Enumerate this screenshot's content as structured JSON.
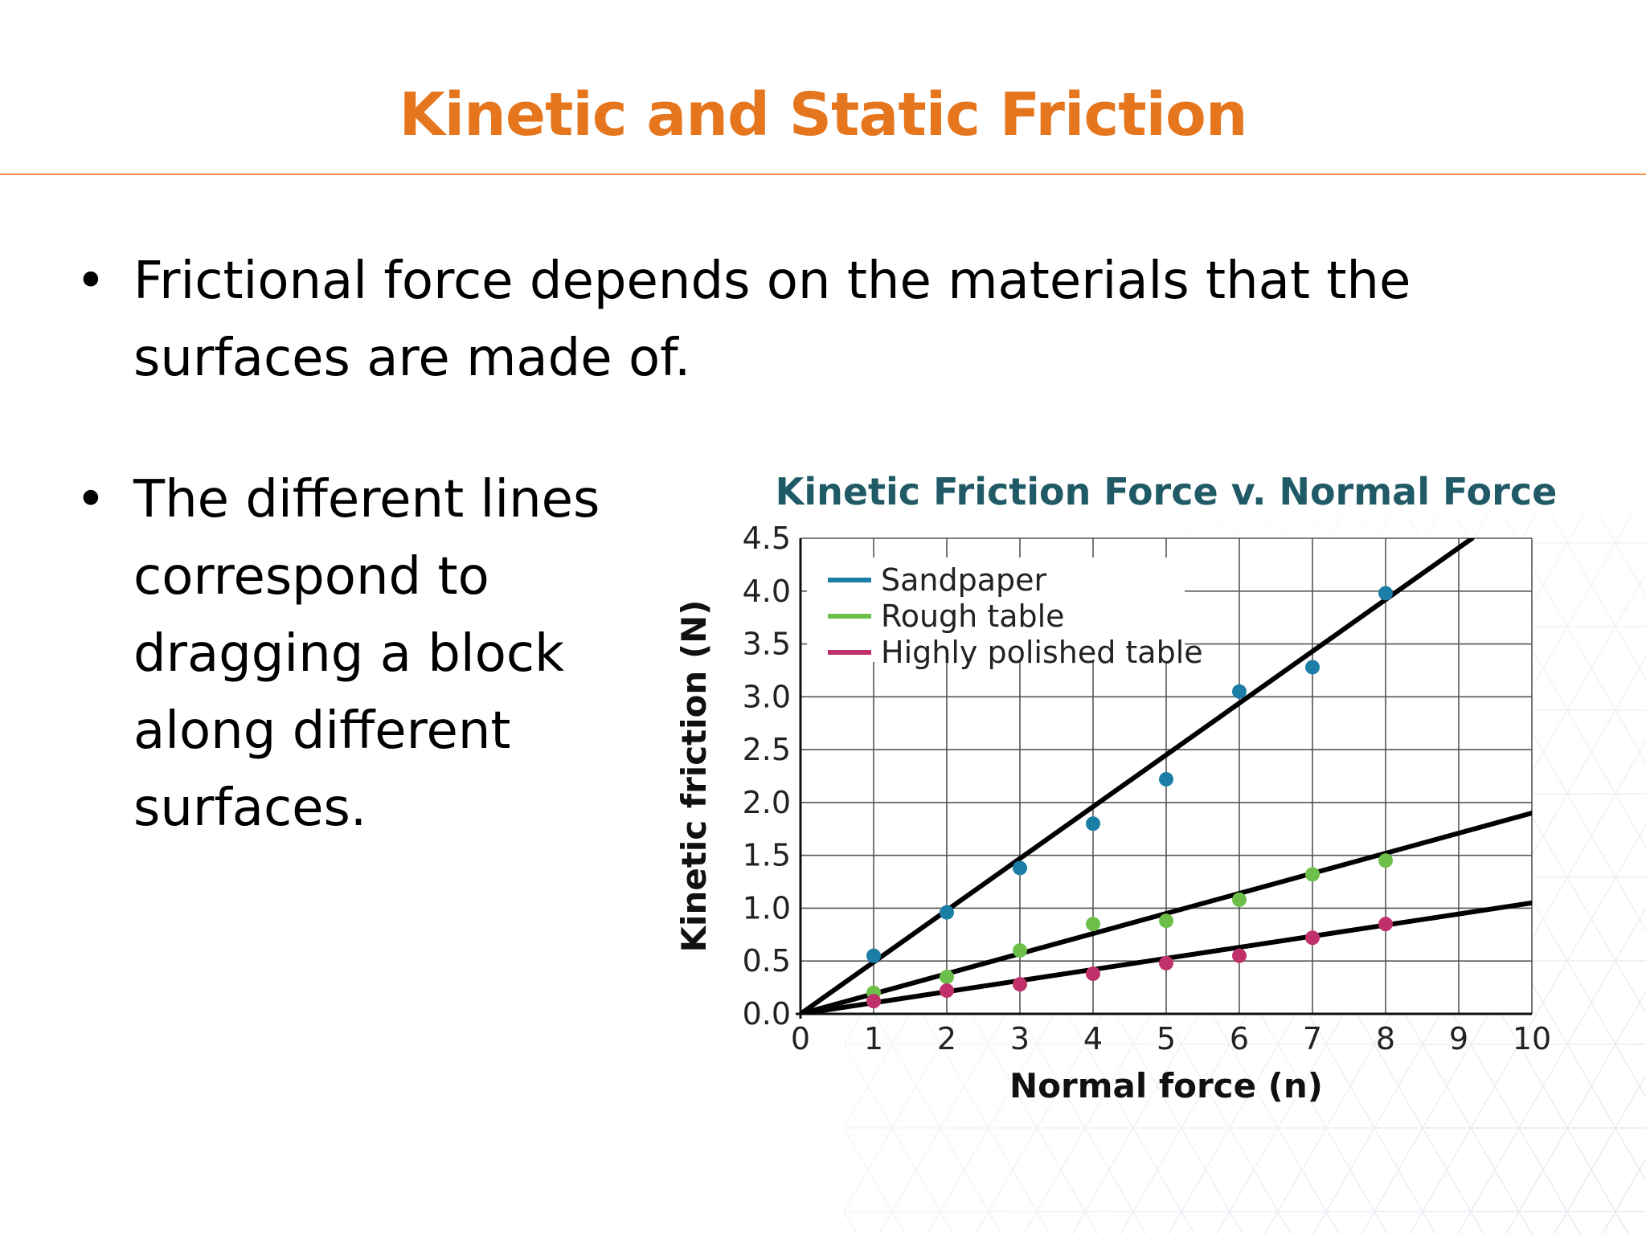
{
  "slide": {
    "title": "Kinetic and Static Friction",
    "bullet_symbol": "•",
    "bullets": [
      "Frictional force depends on the materials that the surfaces are made of.",
      "The different lines correspond to dragging a block along different surfaces."
    ]
  },
  "colors": {
    "title": "#e5761e",
    "chart_title": "#1f5a66",
    "sandpaper": "#1c7ea6",
    "rough_table": "#6cc04a",
    "polished_table": "#c0306b",
    "fit_line": "#000000",
    "grid": "#555555"
  },
  "chart_data": {
    "type": "scatter",
    "title": "Kinetic Friction Force v. Normal Force",
    "xlabel": "Normal force (n)",
    "ylabel": "Kinetic friction (N)",
    "xlim": [
      0,
      10
    ],
    "ylim": [
      0,
      4.5
    ],
    "x_ticks": [
      "0",
      "1",
      "2",
      "3",
      "4",
      "5",
      "6",
      "7",
      "8",
      "9",
      "10"
    ],
    "y_ticks": [
      "0.0",
      "0.5",
      "1.0",
      "1.5",
      "2.0",
      "2.5",
      "3.0",
      "3.5",
      "4.0",
      "4.5"
    ],
    "grid": true,
    "legend_position": "top-left",
    "series": [
      {
        "name": "Sandpaper",
        "color": "#1c7ea6",
        "x": [
          1,
          2,
          3,
          4,
          5,
          6,
          7,
          8
        ],
        "y": [
          0.55,
          0.96,
          1.38,
          1.8,
          2.22,
          3.05,
          3.28,
          3.98
        ],
        "fit_slope": 0.49
      },
      {
        "name": "Rough table",
        "color": "#6cc04a",
        "x": [
          1,
          2,
          3,
          4,
          5,
          6,
          7,
          8
        ],
        "y": [
          0.2,
          0.35,
          0.6,
          0.85,
          0.88,
          1.08,
          1.32,
          1.45
        ],
        "fit_slope": 0.19
      },
      {
        "name": "Highly polished table",
        "color": "#c0306b",
        "x": [
          1,
          2,
          3,
          4,
          5,
          6,
          7,
          8
        ],
        "y": [
          0.12,
          0.22,
          0.28,
          0.38,
          0.48,
          0.55,
          0.72,
          0.85
        ],
        "fit_slope": 0.105
      }
    ]
  }
}
